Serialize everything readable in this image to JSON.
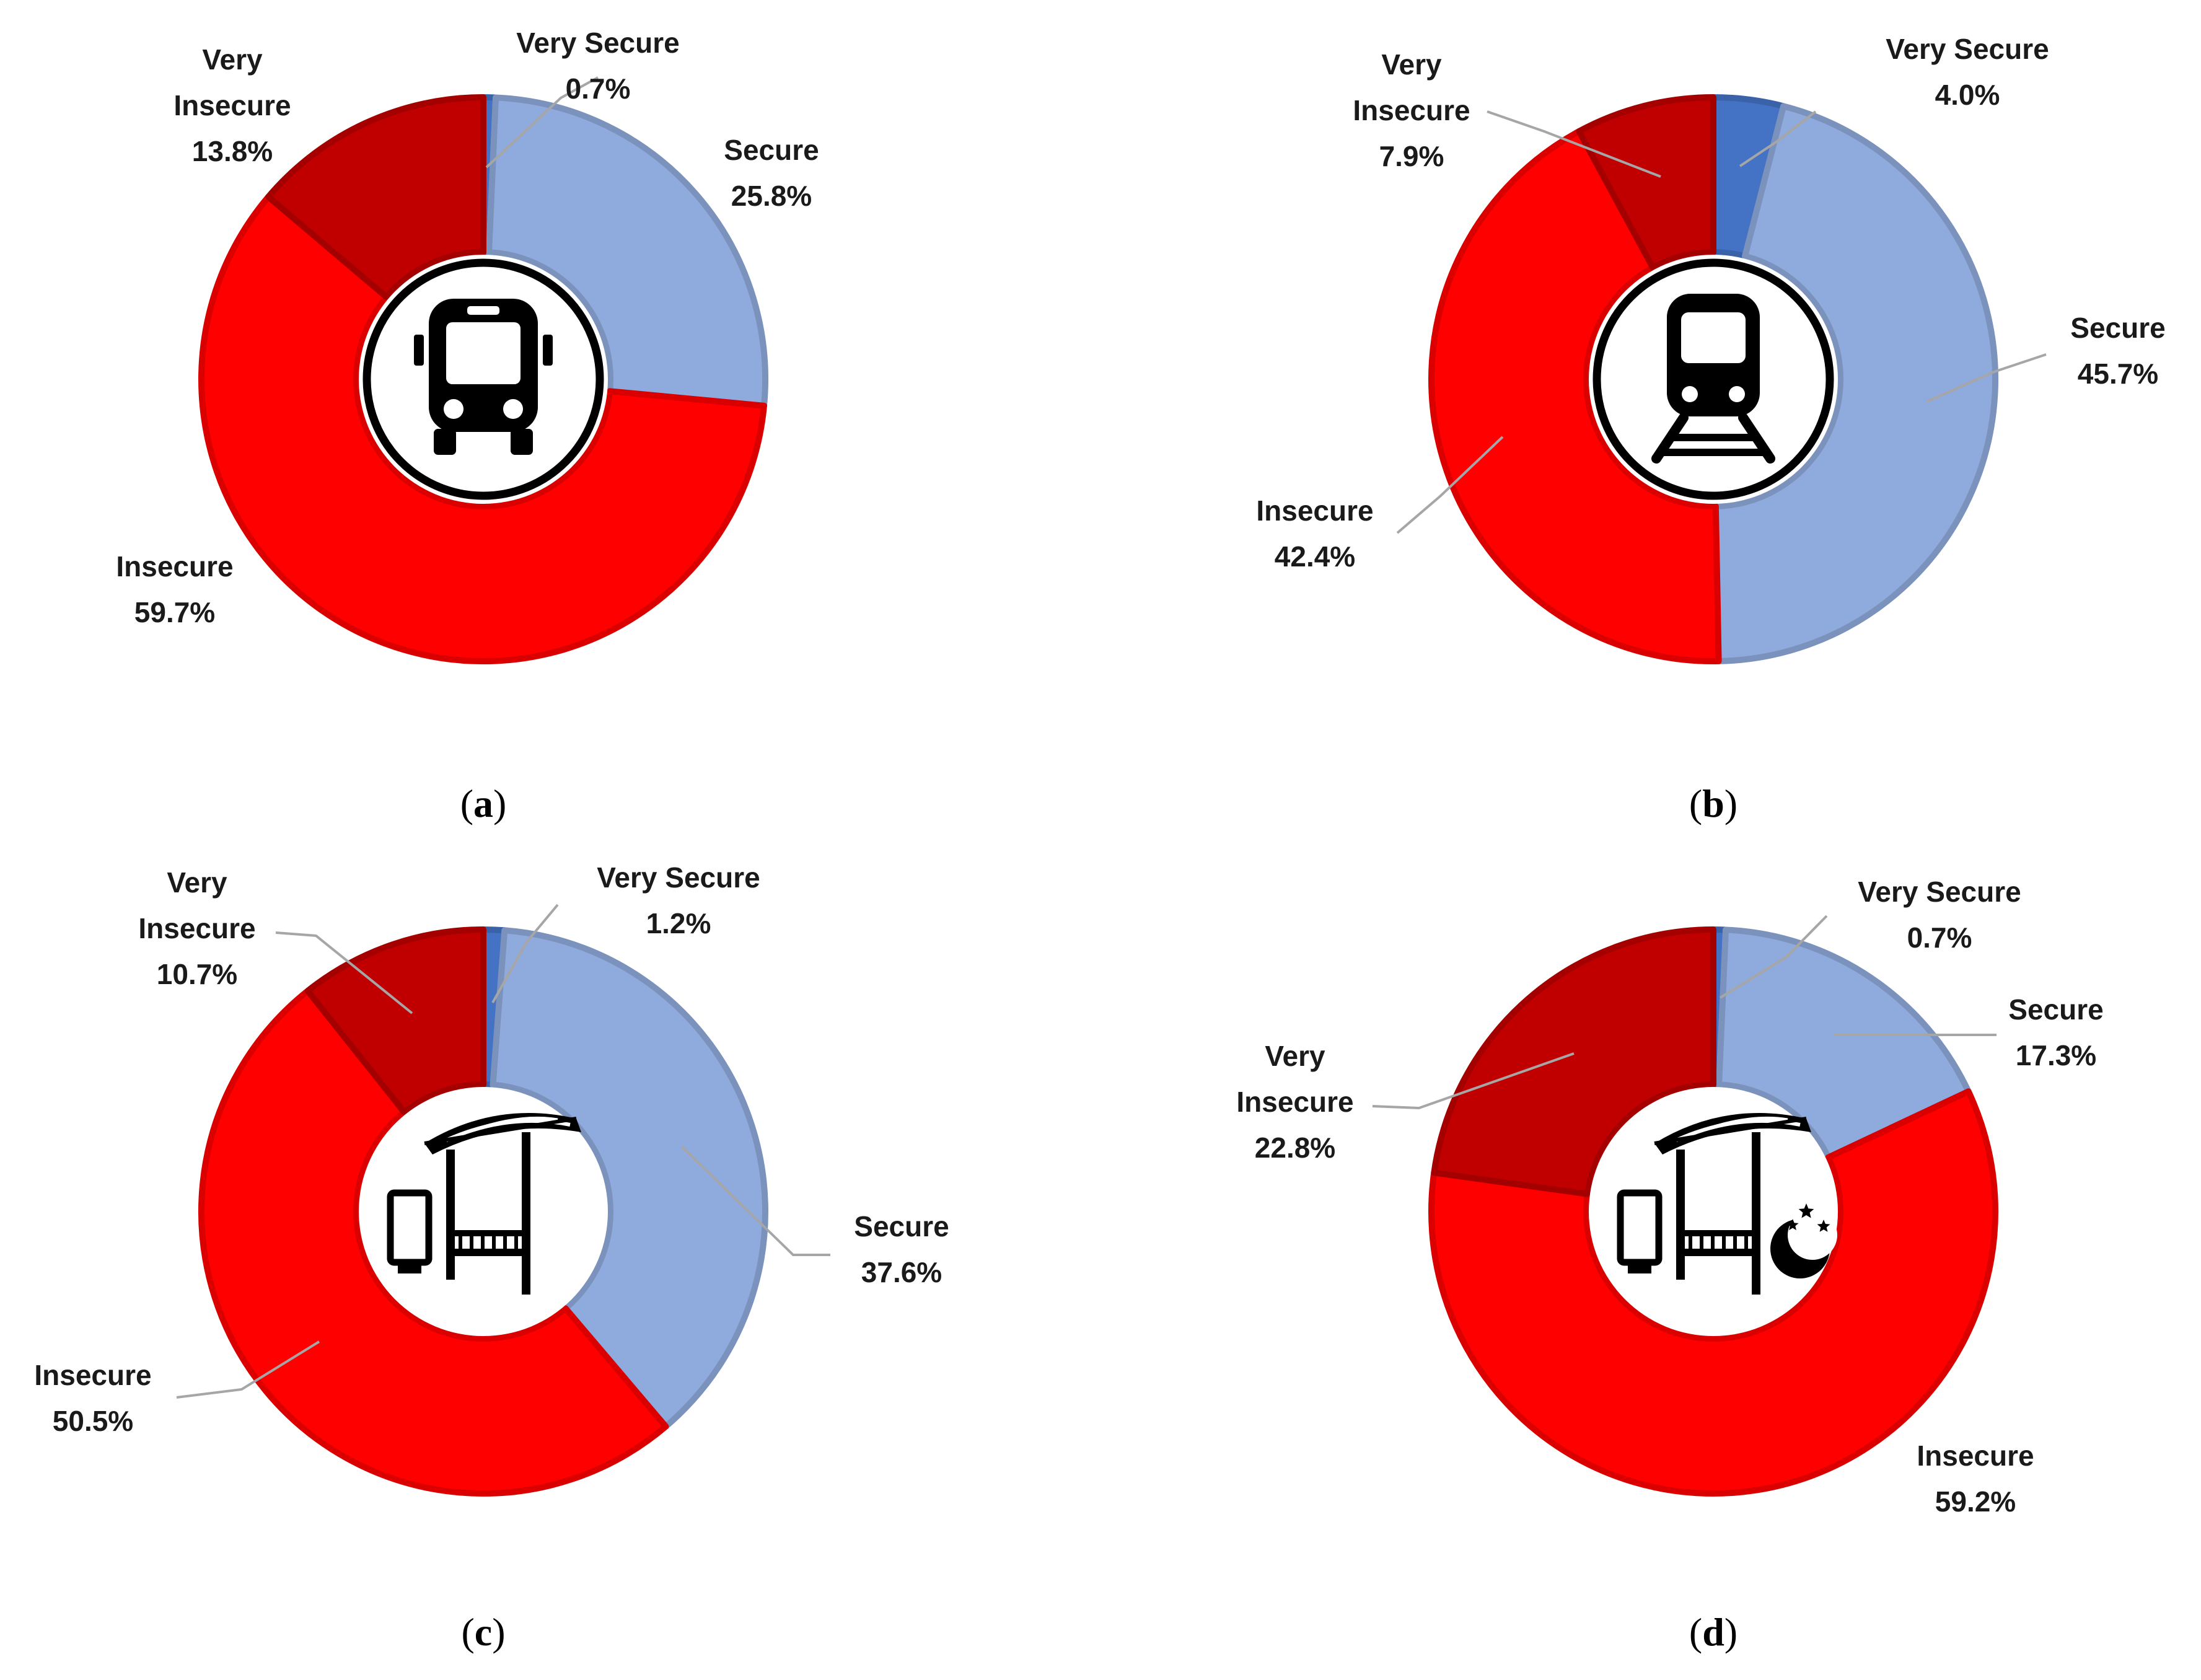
{
  "colors": {
    "very_secure": "#4472C4",
    "secure": "#8FAADC",
    "insecure": "#FF0000",
    "very_insecure": "#C00000",
    "leader": "#A6A6A6"
  },
  "chart_data": [
    {
      "type": "pie",
      "caption_letter": "a",
      "icon": "bus-icon",
      "categories": [
        "Very Secure",
        "Secure",
        "Insecure",
        "Very Insecure"
      ],
      "values": [
        0.7,
        25.8,
        59.7,
        13.8
      ],
      "value_labels": [
        "0.7%",
        "25.8%",
        "59.7%",
        "13.8%"
      ],
      "label_lines": [
        [
          "Very Secure"
        ],
        [
          "Secure"
        ],
        [
          "Insecure"
        ],
        [
          "Very",
          "Insecure"
        ]
      ]
    },
    {
      "type": "pie",
      "caption_letter": "b",
      "icon": "train-icon",
      "categories": [
        "Very Secure",
        "Secure",
        "Insecure",
        "Very Insecure"
      ],
      "values": [
        4.0,
        45.7,
        42.4,
        7.9
      ],
      "value_labels": [
        "4.0%",
        "45.7%",
        "42.4%",
        "7.9%"
      ],
      "label_lines": [
        [
          "Very Secure"
        ],
        [
          "Secure"
        ],
        [
          "Insecure"
        ],
        [
          "Very",
          "Insecure"
        ]
      ]
    },
    {
      "type": "pie",
      "caption_letter": "c",
      "icon": "bus-stop-icon",
      "categories": [
        "Very Secure",
        "Secure",
        "Insecure",
        "Very Insecure"
      ],
      "values": [
        1.2,
        37.6,
        50.5,
        10.7
      ],
      "value_labels": [
        "1.2%",
        "37.6%",
        "50.5%",
        "10.7%"
      ],
      "label_lines": [
        [
          "Very Secure"
        ],
        [
          "Secure"
        ],
        [
          "Insecure"
        ],
        [
          "Very",
          "Insecure"
        ]
      ]
    },
    {
      "type": "pie",
      "caption_letter": "d",
      "icon": "bus-stop-night-icon",
      "categories": [
        "Very Secure",
        "Secure",
        "Insecure",
        "Very Insecure"
      ],
      "values": [
        0.7,
        17.3,
        59.2,
        22.8
      ],
      "value_labels": [
        "0.7%",
        "17.3%",
        "59.2%",
        "22.8%"
      ],
      "label_lines": [
        [
          "Very Secure"
        ],
        [
          "Secure"
        ],
        [
          "Insecure"
        ],
        [
          "Very",
          "Insecure"
        ]
      ]
    }
  ]
}
